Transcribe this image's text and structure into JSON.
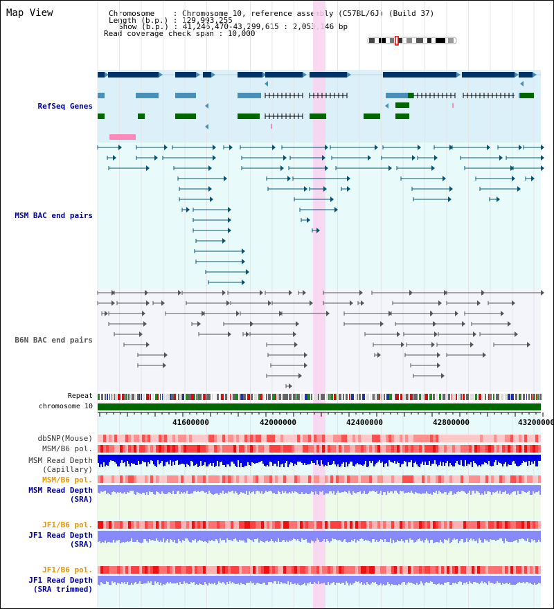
{
  "title": "Map View",
  "info": {
    "chromosome": "Chromosome    : Chromosome 10, reference assembly (C57BL/6J) (Build 37)",
    "length": "Length (b.p.) : 129,993,255",
    "show": "Show (b.p.) : 41,246,470-43,299,615 : 2,053,146 bp",
    "coverage": "Read coverage check span : 10,000"
  },
  "colors": {
    "gene_dark": "#003366",
    "gene_mid": "#4a8fb8",
    "gene_green": "#006600",
    "pink_mark": "#ff88bb",
    "highlight": "#f9d2f0",
    "msm_bac": "#00557a",
    "b6n_bac": "#555555",
    "refseq_bg": "#dcf0fa",
    "msm_bg": "#e8fafa",
    "b6n_bg": "#f4f4fb",
    "blue_depth": "#0000ee",
    "light_blue_depth": "#8888ff",
    "label_blue": "#000099",
    "label_orange": "#e69500"
  },
  "tracks": {
    "refseq": "RefSeq Genes",
    "msm_bac": "MSM BAC end pairs",
    "b6n_bac": "B6N BAC end pairs",
    "repeat": "Repeat",
    "chromosome": "chromosome 10",
    "dbsnp": "dbSNP(Mouse)",
    "msm_b6_pol": "MSM/B6 pol.",
    "msm_depth_cap_1": "MSM Read Depth",
    "msm_depth_cap_2": "(Capillary)",
    "msm_b6_pol2": "MSM/B6 pol.",
    "msm_depth_sra_1": "MSM Read Depth",
    "msm_depth_sra_2": "(SRA)",
    "jf1_b6_pol": "JF1/B6 pol.",
    "jf1_depth_sra_1": "JF1 Read Depth",
    "jf1_depth_sra_2": "(SRA)",
    "jf1_b6_pol2": "JF1/B6 pol.",
    "jf1_depth_trim_1": "JF1 Read Depth",
    "jf1_depth_trim_2": "(SRA trimmed)"
  },
  "axis": {
    "ticks": [
      "41600000",
      "42000000",
      "42400000",
      "42800000",
      "43200000"
    ]
  }
}
